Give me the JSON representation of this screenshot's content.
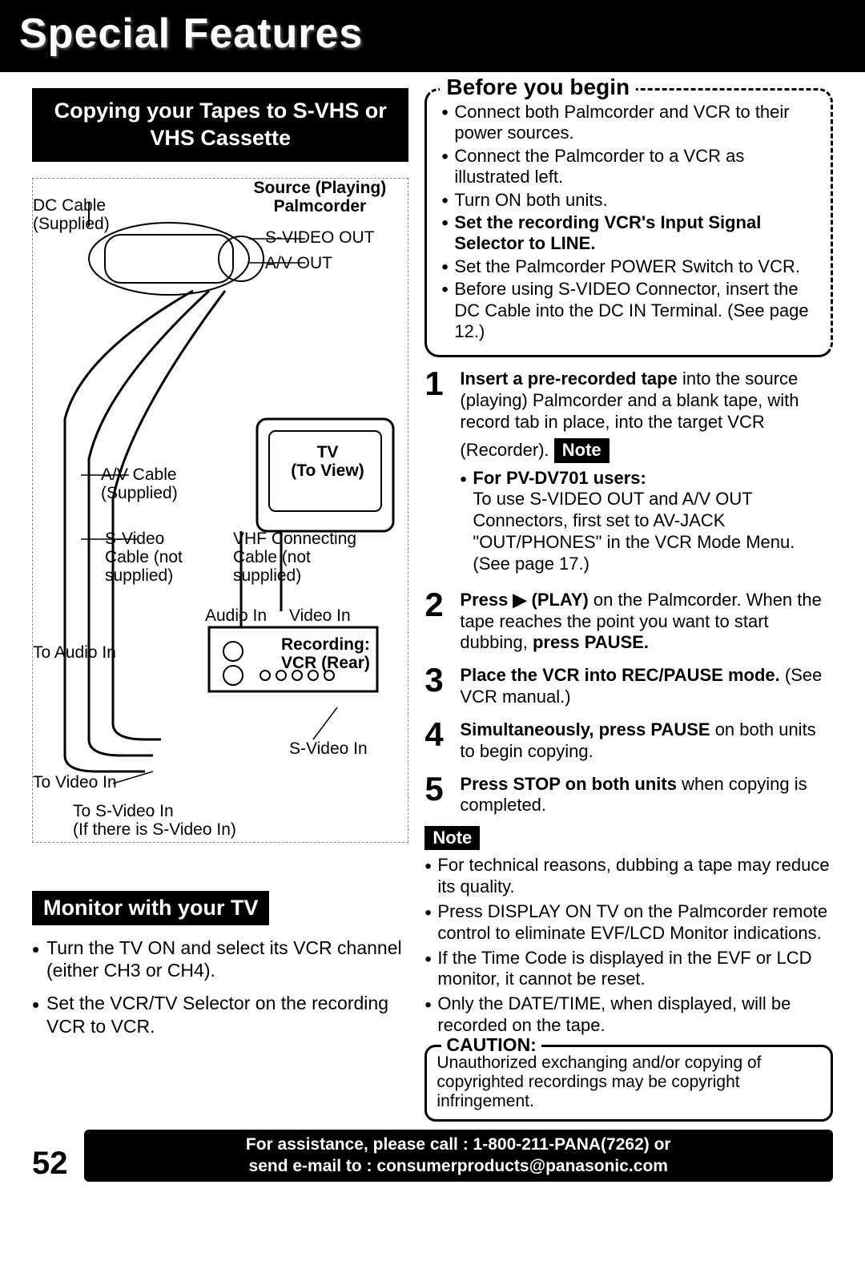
{
  "title_bar": "Special Features",
  "section_box": "Copying your Tapes to S-VHS or VHS Cassette",
  "diagram": {
    "source_label": "Source (Playing)\nPalmcorder",
    "dc_cable": "DC Cable\n(Supplied)",
    "svideo_out": "S-VIDEO OUT",
    "av_out": "A/V OUT",
    "tv_label": "TV\n(To View)",
    "av_cable": "A/V Cable\n(Supplied)",
    "svideo_cable": "S-Video\nCable (not\nsupplied)",
    "vhf_cable": "VHF Connecting\nCable (not\nsupplied)",
    "audio_in": "Audio In",
    "video_in": "Video In",
    "recording_vcr": "Recording:\nVCR (Rear)",
    "to_audio_in": "To Audio In",
    "to_video_in": "To Video In",
    "svideo_in": "S-Video In",
    "to_svideo_in": "To S-Video In\n(If there is S-Video In)"
  },
  "monitor_title": "Monitor with your TV",
  "monitor_items": [
    "Turn the TV ON and select its VCR channel (either CH3 or CH4).",
    "Set the VCR/TV Selector on the recording VCR to VCR."
  ],
  "before": {
    "legend": "Before you begin",
    "items": [
      "Connect both Palmcorder and VCR to their power sources.",
      "Connect the Palmcorder to a VCR as illustrated left.",
      "Turn ON both units.",
      "Set the recording VCR's Input Signal Selector to LINE.",
      "Set the Palmcorder POWER Switch to VCR.",
      "Before using S-VIDEO Connector, insert the DC Cable into the DC IN Terminal. (See page 12.)"
    ],
    "bold_index": 3
  },
  "steps": [
    {
      "num": "1",
      "lead_bold": "Insert a pre-recorded tape",
      "rest": " into the source (playing) Palmcorder and a blank tape, with record tab in place, into the target VCR (Recorder).",
      "note": "Note",
      "note_bold": "For PV-DV701 users:",
      "note_body": "To use S-VIDEO OUT and A/V OUT Connectors, first set to AV-JACK \"OUT/PHONES\" in the VCR Mode Menu. (See page 17.)"
    },
    {
      "num": "2",
      "lead_bold": "Press ▶ (PLAY)",
      "rest": " on the Palmcorder. When the tape reaches the point you want to start dubbing, ",
      "tail_bold": "press PAUSE."
    },
    {
      "num": "3",
      "lead_bold": "Place the VCR into REC/PAUSE mode.",
      "rest": " (See VCR manual.)"
    },
    {
      "num": "4",
      "lead_bold": "Simultaneously, press PAUSE",
      "rest": " on both units to begin copying."
    },
    {
      "num": "5",
      "lead_bold": "Press STOP on both units",
      "rest": " when copying is completed."
    }
  ],
  "note2": {
    "tag": "Note",
    "items": [
      "For technical reasons, dubbing a tape may reduce its quality.",
      "Press DISPLAY ON TV on the Palmcorder remote control to eliminate EVF/LCD Monitor indications.",
      "If the Time Code is displayed in the EVF or LCD monitor, it cannot be reset.",
      "Only the DATE/TIME, when displayed, will be recorded on the tape."
    ]
  },
  "caution": {
    "legend": "CAUTION:",
    "text": "Unauthorized exchanging and/or copying of copyrighted recordings may be copyright infringement."
  },
  "footer": {
    "page": "52",
    "line1": "For assistance, please call : 1-800-211-PANA(7262) or",
    "line2": "send e-mail to : consumerproducts@panasonic.com"
  }
}
